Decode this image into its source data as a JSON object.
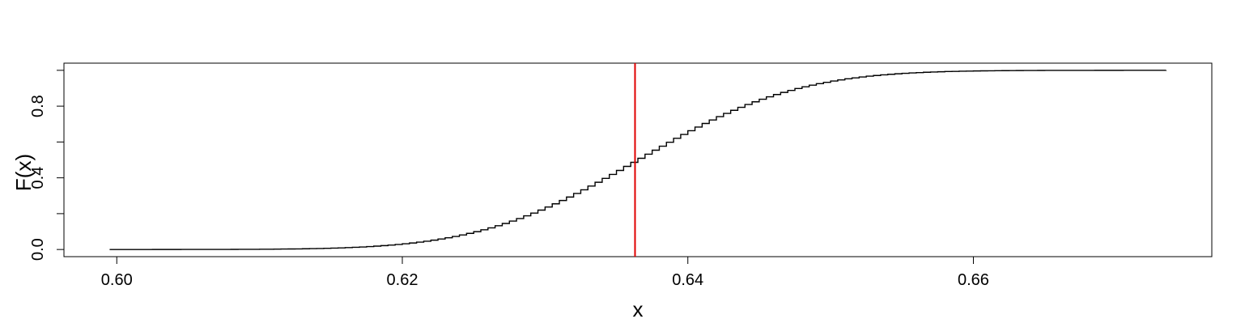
{
  "chart_data": {
    "type": "line",
    "title": "",
    "xlabel": "x",
    "ylabel": "F(x)",
    "xlim": [
      0.5963,
      0.6767
    ],
    "ylim": [
      -0.04,
      1.04
    ],
    "x_ticks": [
      {
        "value": 0.6,
        "label": "0.60"
      },
      {
        "value": 0.62,
        "label": "0.62"
      },
      {
        "value": 0.64,
        "label": "0.64"
      },
      {
        "value": 0.66,
        "label": "0.66"
      }
    ],
    "y_ticks": [
      {
        "value": 0.0,
        "label": "0.0"
      },
      {
        "value": 0.2,
        "label": ""
      },
      {
        "value": 0.4,
        "label": "0.4"
      },
      {
        "value": 0.6,
        "label": ""
      },
      {
        "value": 0.8,
        "label": "0.8"
      },
      {
        "value": 1.0,
        "label": ""
      }
    ],
    "grid": false,
    "series": [
      {
        "style": "step",
        "color": "#000000",
        "distribution": "normal",
        "mean": 0.6363,
        "sd": 0.0088,
        "x_range": [
          0.5995,
          0.6735
        ],
        "step_width": 0.0005
      }
    ],
    "annotations": [
      {
        "type": "vline",
        "x": 0.6363,
        "color": "#e00000"
      }
    ]
  }
}
